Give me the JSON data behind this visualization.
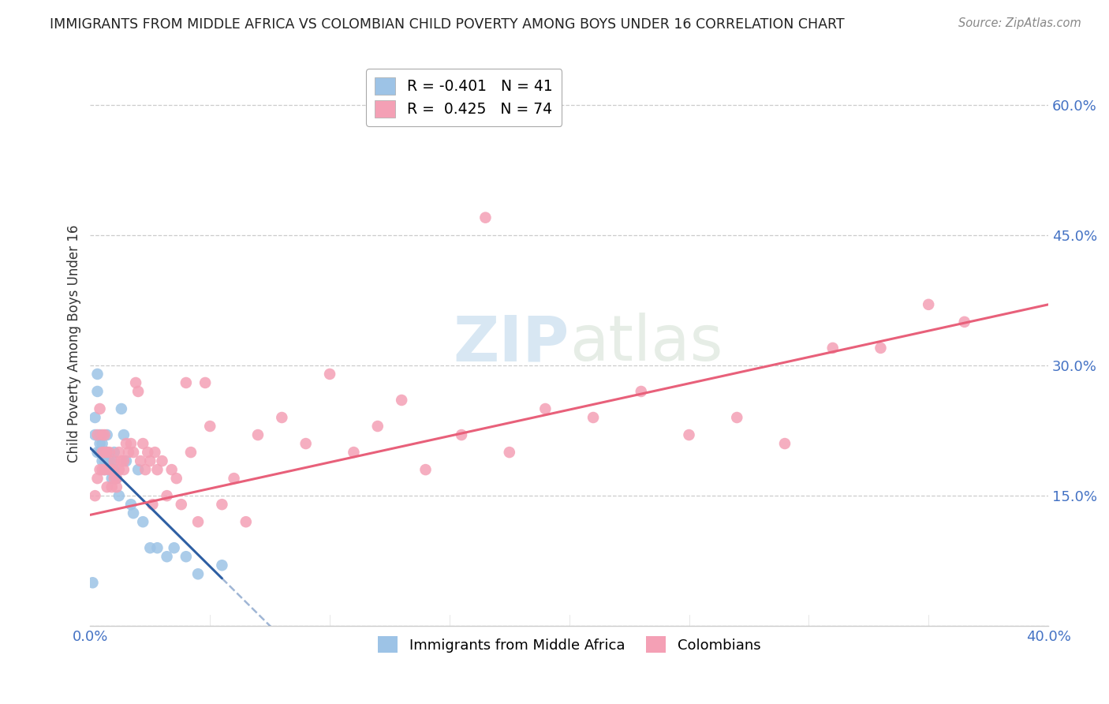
{
  "title": "IMMIGRANTS FROM MIDDLE AFRICA VS COLOMBIAN CHILD POVERTY AMONG BOYS UNDER 16 CORRELATION CHART",
  "source": "Source: ZipAtlas.com",
  "ylabel": "Child Poverty Among Boys Under 16",
  "xlim": [
    0.0,
    0.4
  ],
  "ylim": [
    0.0,
    0.65
  ],
  "xticks": [
    0.0,
    0.05,
    0.1,
    0.15,
    0.2,
    0.25,
    0.3,
    0.35,
    0.4
  ],
  "yticks": [
    0.0,
    0.15,
    0.3,
    0.45,
    0.6
  ],
  "yticklabels": [
    "",
    "15.0%",
    "30.0%",
    "45.0%",
    "60.0%"
  ],
  "grid_color": "#cccccc",
  "background_color": "#ffffff",
  "title_color": "#222222",
  "axis_label_color": "#333333",
  "tick_label_color": "#4472c4",
  "series1_color": "#9dc3e6",
  "series1_label": "Immigrants from Middle Africa",
  "series1_R": "-0.401",
  "series1_N": "41",
  "series2_color": "#f4a0b5",
  "series2_label": "Colombians",
  "series2_R": "0.425",
  "series2_N": "74",
  "line1_color": "#2e5fa3",
  "line2_color": "#e8607a",
  "watermark_zip": "ZIP",
  "watermark_atlas": "atlas",
  "series1_x": [
    0.001,
    0.002,
    0.002,
    0.003,
    0.003,
    0.003,
    0.004,
    0.004,
    0.004,
    0.005,
    0.005,
    0.005,
    0.006,
    0.006,
    0.006,
    0.007,
    0.007,
    0.007,
    0.007,
    0.008,
    0.008,
    0.009,
    0.009,
    0.01,
    0.01,
    0.011,
    0.012,
    0.013,
    0.014,
    0.015,
    0.017,
    0.018,
    0.02,
    0.022,
    0.025,
    0.028,
    0.032,
    0.035,
    0.04,
    0.045,
    0.055
  ],
  "series1_y": [
    0.05,
    0.22,
    0.24,
    0.27,
    0.29,
    0.2,
    0.21,
    0.2,
    0.22,
    0.19,
    0.21,
    0.2,
    0.2,
    0.18,
    0.19,
    0.19,
    0.2,
    0.22,
    0.2,
    0.19,
    0.18,
    0.19,
    0.17,
    0.18,
    0.2,
    0.17,
    0.15,
    0.25,
    0.22,
    0.19,
    0.14,
    0.13,
    0.18,
    0.12,
    0.09,
    0.09,
    0.08,
    0.09,
    0.08,
    0.06,
    0.07
  ],
  "series2_x": [
    0.002,
    0.003,
    0.003,
    0.004,
    0.004,
    0.005,
    0.005,
    0.005,
    0.006,
    0.006,
    0.006,
    0.007,
    0.007,
    0.008,
    0.008,
    0.009,
    0.009,
    0.01,
    0.01,
    0.011,
    0.011,
    0.012,
    0.012,
    0.013,
    0.014,
    0.014,
    0.015,
    0.016,
    0.017,
    0.018,
    0.019,
    0.02,
    0.021,
    0.022,
    0.023,
    0.024,
    0.025,
    0.026,
    0.027,
    0.028,
    0.03,
    0.032,
    0.034,
    0.036,
    0.038,
    0.04,
    0.042,
    0.045,
    0.048,
    0.05,
    0.055,
    0.06,
    0.065,
    0.07,
    0.08,
    0.09,
    0.1,
    0.11,
    0.12,
    0.13,
    0.14,
    0.155,
    0.165,
    0.175,
    0.19,
    0.21,
    0.23,
    0.25,
    0.27,
    0.29,
    0.31,
    0.33,
    0.35,
    0.365
  ],
  "series2_y": [
    0.15,
    0.17,
    0.22,
    0.18,
    0.25,
    0.18,
    0.22,
    0.2,
    0.18,
    0.2,
    0.22,
    0.16,
    0.2,
    0.18,
    0.2,
    0.18,
    0.16,
    0.19,
    0.17,
    0.16,
    0.17,
    0.2,
    0.18,
    0.19,
    0.18,
    0.19,
    0.21,
    0.2,
    0.21,
    0.2,
    0.28,
    0.27,
    0.19,
    0.21,
    0.18,
    0.2,
    0.19,
    0.14,
    0.2,
    0.18,
    0.19,
    0.15,
    0.18,
    0.17,
    0.14,
    0.28,
    0.2,
    0.12,
    0.28,
    0.23,
    0.14,
    0.17,
    0.12,
    0.22,
    0.24,
    0.21,
    0.29,
    0.2,
    0.23,
    0.26,
    0.18,
    0.22,
    0.47,
    0.2,
    0.25,
    0.24,
    0.27,
    0.22,
    0.24,
    0.21,
    0.32,
    0.32,
    0.37,
    0.35
  ],
  "line1_x_start": 0.0,
  "line1_y_start": 0.205,
  "line1_x_end": 0.055,
  "line1_y_end": 0.055,
  "line1_dash_x_end": 0.4,
  "line2_x_start": 0.0,
  "line2_y_start": 0.128,
  "line2_x_end": 0.4,
  "line2_y_end": 0.37
}
